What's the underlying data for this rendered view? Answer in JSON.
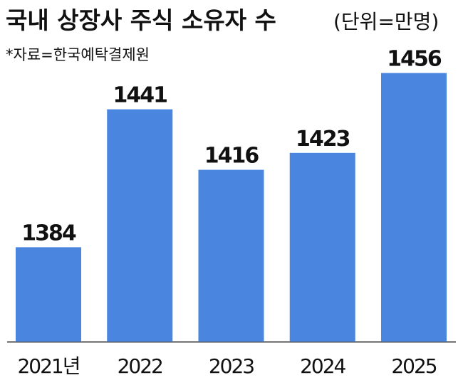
{
  "chart_data": {
    "type": "bar",
    "title": "국내 상장사 주식 소유자 수",
    "unit": "(단위=만명)",
    "source": "*자료=한국예탁결제원",
    "categories": [
      "2021년",
      "2022",
      "2023",
      "2024",
      "2025"
    ],
    "values": [
      1384,
      1441,
      1416,
      1423,
      1456
    ],
    "color": "#4a86e0",
    "ylim": [
      1345,
      1470
    ]
  }
}
